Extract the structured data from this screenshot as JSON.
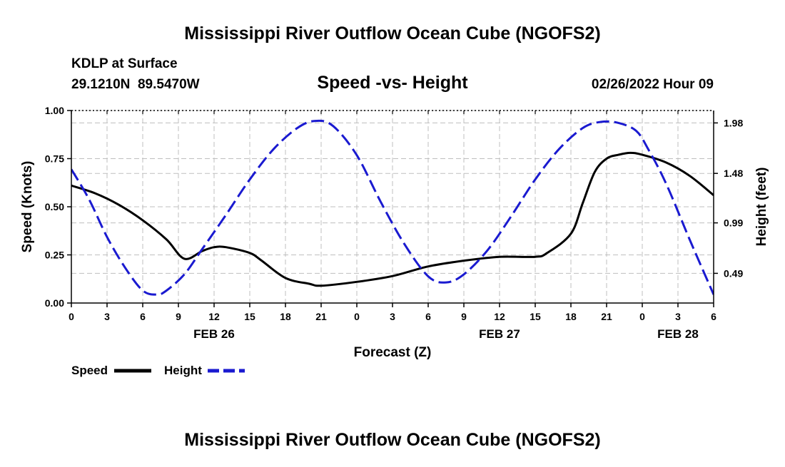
{
  "page_title": "Mississippi River Outflow Ocean Cube (NGOFS2)",
  "footer_title": "Mississippi River Outflow Ocean Cube (NGOFS2)",
  "station": {
    "name": "KDLP at Surface",
    "coords": "29.1210N  89.5470W",
    "datetime": "02/26/2022 Hour 09"
  },
  "colors": {
    "speed": "#000000",
    "height": "#1a1ad0",
    "grid": "#bfbfbf"
  },
  "chart_data": {
    "type": "line",
    "title": "Speed -vs- Height",
    "xlabel": "Forecast (Z)",
    "ylabel_left": "Speed (Knots)",
    "ylabel_right": "Height (feet)",
    "x_unit": "hours since 02/26 00Z",
    "xlim": [
      0,
      54
    ],
    "ylim_left": [
      0,
      1.0
    ],
    "ylim_right": [
      0.1961,
      2.1029
    ],
    "x_ticks": [
      {
        "x": 0,
        "label": "0"
      },
      {
        "x": 3,
        "label": "3"
      },
      {
        "x": 6,
        "label": "6"
      },
      {
        "x": 9,
        "label": "9"
      },
      {
        "x": 12,
        "label": "12"
      },
      {
        "x": 15,
        "label": "15"
      },
      {
        "x": 18,
        "label": "18"
      },
      {
        "x": 21,
        "label": "21"
      },
      {
        "x": 24,
        "label": "0"
      },
      {
        "x": 27,
        "label": "3"
      },
      {
        "x": 30,
        "label": "6"
      },
      {
        "x": 33,
        "label": "9"
      },
      {
        "x": 36,
        "label": "12"
      },
      {
        "x": 39,
        "label": "15"
      },
      {
        "x": 42,
        "label": "18"
      },
      {
        "x": 45,
        "label": "21"
      },
      {
        "x": 48,
        "label": "0"
      },
      {
        "x": 51,
        "label": "3"
      },
      {
        "x": 54,
        "label": "6"
      }
    ],
    "day_labels": [
      {
        "x": 12,
        "label": "FEB 26"
      },
      {
        "x": 36,
        "label": "FEB 27"
      },
      {
        "x": 51,
        "label": "FEB 28"
      }
    ],
    "y_ticks_left": [
      {
        "value": 0.0,
        "label": "0.00"
      },
      {
        "value": 0.25,
        "label": "0.25"
      },
      {
        "value": 0.5,
        "label": "0.50"
      },
      {
        "value": 0.75,
        "label": "0.75"
      },
      {
        "value": 1.0,
        "label": "1.00"
      }
    ],
    "y_ticks_right": [
      {
        "value": 0.49,
        "label": "0.49"
      },
      {
        "value": 0.99,
        "label": "0.99"
      },
      {
        "value": 1.48,
        "label": "1.48"
      },
      {
        "value": 1.98,
        "label": "1.98"
      }
    ],
    "series": [
      {
        "name": "Speed",
        "axis": "left",
        "style": "solid",
        "x": [
          0,
          2,
          4,
          6,
          8,
          9.5,
          11,
          12,
          13,
          15,
          16,
          18,
          20,
          21,
          24,
          27,
          30,
          33,
          36,
          39,
          40,
          42,
          43,
          44,
          45,
          46,
          47,
          48,
          50,
          52,
          54
        ],
        "values": [
          0.61,
          0.57,
          0.51,
          0.43,
          0.33,
          0.23,
          0.27,
          0.29,
          0.29,
          0.26,
          0.22,
          0.13,
          0.1,
          0.09,
          0.11,
          0.14,
          0.19,
          0.22,
          0.24,
          0.24,
          0.26,
          0.36,
          0.52,
          0.68,
          0.75,
          0.77,
          0.78,
          0.77,
          0.73,
          0.66,
          0.56
        ]
      },
      {
        "name": "Height",
        "axis": "right",
        "style": "dashed",
        "x": [
          0,
          1.5,
          3,
          4.5,
          6,
          7.2,
          8,
          9.5,
          11,
          13,
          15,
          17,
          19,
          20.5,
          22,
          24,
          26,
          28,
          30,
          31.5,
          33,
          35,
          37,
          39,
          41,
          43,
          44.5,
          46,
          47.5,
          48.5,
          50,
          52,
          54
        ],
        "values": [
          1.52,
          1.22,
          0.85,
          0.55,
          0.32,
          0.28,
          0.32,
          0.48,
          0.73,
          1.07,
          1.42,
          1.72,
          1.93,
          2.0,
          1.95,
          1.66,
          1.2,
          0.78,
          0.46,
          0.4,
          0.48,
          0.72,
          1.06,
          1.42,
          1.72,
          1.93,
          1.99,
          1.98,
          1.9,
          1.72,
          1.38,
          0.82,
          0.28
        ]
      }
    ]
  }
}
